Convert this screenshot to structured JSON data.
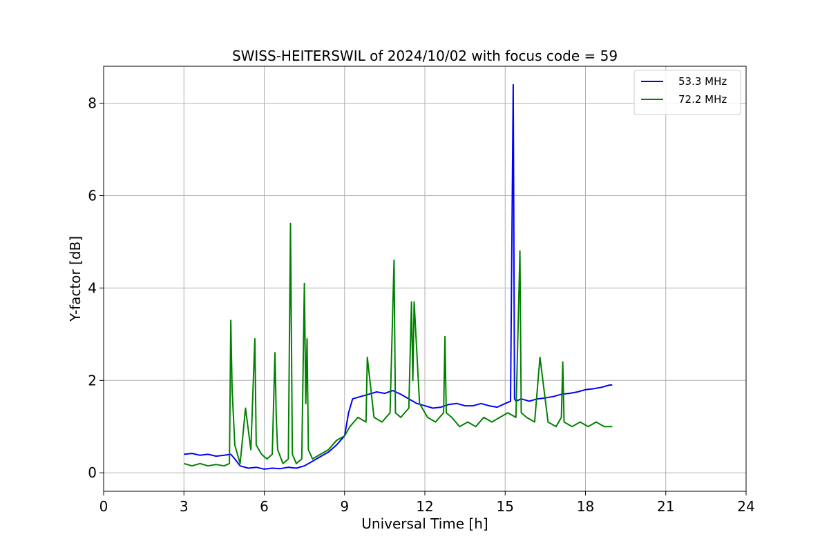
{
  "chart_data": {
    "type": "line",
    "title": "SWISS-HEITERSWIL of 2024/10/02 with focus code = 59",
    "xlabel": "Universal Time [h]",
    "ylabel": "Y-factor [dB]",
    "xlim": [
      0,
      24
    ],
    "ylim": [
      -0.4,
      8.8
    ],
    "xticks": [
      0,
      3,
      6,
      9,
      12,
      15,
      18,
      21,
      24
    ],
    "yticks": [
      0,
      2,
      4,
      6,
      8
    ],
    "xtick_labels": [
      "0",
      "3",
      "6",
      "9",
      "12",
      "15",
      "18",
      "21",
      "24"
    ],
    "ytick_labels": [
      "0",
      "2",
      "4",
      "6",
      "8"
    ],
    "grid": true,
    "legend_position": "top-right",
    "series": [
      {
        "name": "53.3 MHz",
        "color": "#0000ff",
        "x": [
          3.0,
          3.3,
          3.6,
          3.9,
          4.2,
          4.5,
          4.75,
          4.9,
          5.1,
          5.4,
          5.7,
          6.0,
          6.3,
          6.6,
          6.9,
          7.2,
          7.5,
          7.8,
          8.1,
          8.4,
          8.7,
          9.0,
          9.15,
          9.3,
          9.6,
          9.9,
          10.2,
          10.5,
          10.8,
          11.1,
          11.4,
          11.7,
          12.0,
          12.3,
          12.6,
          12.9,
          13.2,
          13.5,
          13.8,
          14.1,
          14.4,
          14.7,
          15.0,
          15.2,
          15.3,
          15.35,
          15.4,
          15.6,
          15.9,
          16.2,
          16.5,
          16.8,
          17.1,
          17.4,
          17.7,
          18.0,
          18.3,
          18.6,
          18.9,
          19.0
        ],
        "y": [
          0.4,
          0.42,
          0.38,
          0.4,
          0.36,
          0.38,
          0.4,
          0.3,
          0.15,
          0.1,
          0.12,
          0.08,
          0.1,
          0.09,
          0.12,
          0.1,
          0.15,
          0.25,
          0.35,
          0.45,
          0.6,
          0.8,
          1.3,
          1.6,
          1.65,
          1.7,
          1.75,
          1.72,
          1.78,
          1.7,
          1.6,
          1.5,
          1.45,
          1.4,
          1.42,
          1.48,
          1.5,
          1.45,
          1.45,
          1.5,
          1.45,
          1.42,
          1.5,
          1.55,
          8.4,
          1.6,
          1.55,
          1.6,
          1.55,
          1.6,
          1.62,
          1.65,
          1.7,
          1.72,
          1.75,
          1.8,
          1.82,
          1.85,
          1.9,
          1.9
        ]
      },
      {
        "name": "72.2 MHz",
        "color": "#008000",
        "x": [
          3.0,
          3.3,
          3.6,
          3.9,
          4.2,
          4.5,
          4.7,
          4.75,
          4.8,
          4.9,
          5.1,
          5.3,
          5.5,
          5.65,
          5.7,
          5.9,
          6.1,
          6.3,
          6.4,
          6.45,
          6.5,
          6.7,
          6.9,
          6.98,
          7.05,
          7.2,
          7.4,
          7.5,
          7.55,
          7.6,
          7.65,
          7.8,
          8.1,
          8.4,
          8.7,
          9.0,
          9.2,
          9.5,
          9.8,
          9.85,
          10.1,
          10.4,
          10.7,
          10.85,
          10.9,
          11.1,
          11.4,
          11.5,
          11.55,
          11.6,
          11.8,
          12.1,
          12.4,
          12.7,
          12.75,
          12.8,
          13.0,
          13.3,
          13.6,
          13.9,
          14.2,
          14.5,
          14.8,
          15.1,
          15.4,
          15.55,
          15.6,
          15.8,
          16.1,
          16.3,
          16.6,
          16.9,
          17.1,
          17.15,
          17.2,
          17.5,
          17.8,
          18.1,
          18.4,
          18.7,
          19.0
        ],
        "y": [
          0.2,
          0.15,
          0.2,
          0.15,
          0.18,
          0.15,
          0.2,
          3.3,
          1.8,
          0.6,
          0.2,
          1.4,
          0.5,
          2.9,
          0.6,
          0.4,
          0.3,
          0.4,
          2.6,
          1.2,
          0.5,
          0.2,
          0.3,
          5.4,
          0.4,
          0.2,
          0.3,
          4.1,
          1.5,
          2.9,
          0.5,
          0.3,
          0.4,
          0.5,
          0.7,
          0.8,
          1.0,
          1.2,
          1.1,
          2.5,
          1.2,
          1.1,
          1.3,
          4.6,
          1.3,
          1.2,
          1.4,
          3.7,
          2.0,
          3.7,
          1.5,
          1.2,
          1.1,
          1.3,
          2.95,
          1.3,
          1.2,
          1.0,
          1.1,
          1.0,
          1.2,
          1.1,
          1.2,
          1.3,
          1.2,
          4.8,
          1.3,
          1.2,
          1.1,
          2.5,
          1.1,
          1.0,
          1.2,
          2.4,
          1.1,
          1.0,
          1.1,
          1.0,
          1.1,
          1.0,
          1.0
        ]
      }
    ]
  }
}
